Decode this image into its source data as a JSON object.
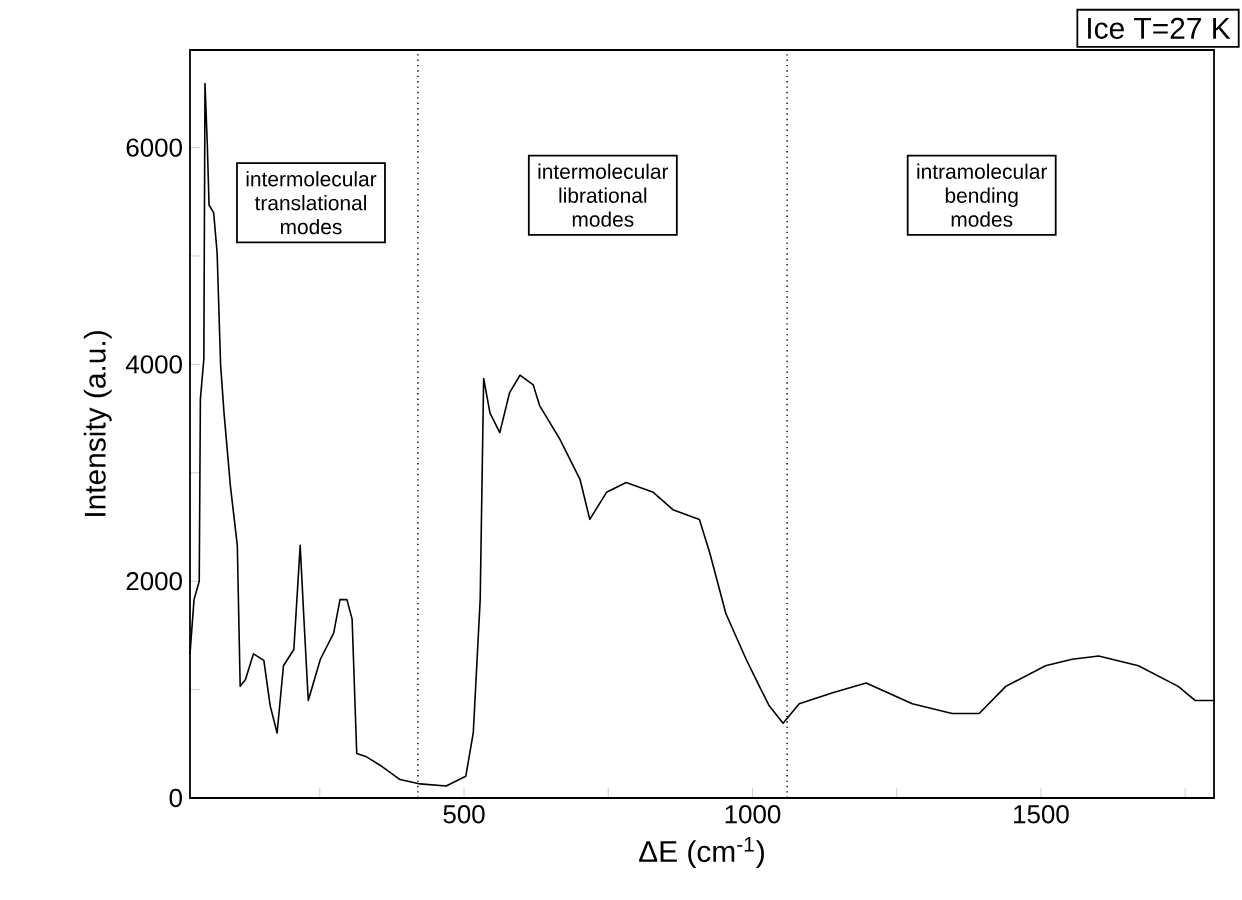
{
  "chart_data": {
    "type": "line",
    "xlabel": "ΔE (cm$^{-1}$)",
    "ylabel": "Intensity (a.u.)",
    "x": [
      25,
      32,
      41,
      43,
      49,
      51,
      55,
      58,
      66,
      72,
      78,
      84,
      95,
      107,
      112,
      121,
      135,
      153,
      164,
      176,
      187,
      205,
      216,
      222,
      230,
      251,
      274,
      285,
      297,
      306,
      314,
      331,
      355,
      389,
      424,
      469,
      503,
      516,
      528,
      534,
      545,
      562,
      579,
      597,
      620,
      631,
      666,
      701,
      718,
      747,
      781,
      828,
      862,
      908,
      926,
      954,
      989,
      1012,
      1029,
      1053,
      1081,
      1139,
      1197,
      1277,
      1346,
      1393,
      1439,
      1508,
      1554,
      1600,
      1669,
      1738,
      1767,
      1800
    ],
    "series": [
      {
        "color": "#000000",
        "values": [
          1330,
          1830,
          2000,
          3680,
          4050,
          6590,
          6030,
          5470,
          5400,
          5030,
          4000,
          3550,
          2880,
          2330,
          1030,
          1090,
          1330,
          1270,
          850,
          600,
          1220,
          1370,
          2330,
          1700,
          900,
          1280,
          1520,
          1830,
          1830,
          1650,
          410,
          380,
          300,
          170,
          130,
          110,
          200,
          600,
          1830,
          3870,
          3550,
          3370,
          3740,
          3900,
          3810,
          3620,
          3310,
          2940,
          2570,
          2820,
          2910,
          2820,
          2660,
          2570,
          2260,
          1700,
          1280,
          1030,
          850,
          690,
          870,
          970,
          1060,
          870,
          780,
          780,
          1030,
          1220,
          1280,
          1310,
          1220,
          1030,
          900,
          900
        ]
      }
    ],
    "xlim": [
      25,
      1800
    ],
    "ylim": [
      0,
      6900
    ],
    "xticks": [
      {
        "value": 250,
        "label": null
      },
      500,
      {
        "value": 750,
        "label": null
      },
      1000,
      {
        "value": 1250,
        "label": null
      },
      1500,
      {
        "value": 1750,
        "label": null
      }
    ],
    "yticks": [
      0,
      {
        "value": 1000,
        "label": null
      },
      2000,
      {
        "value": 3000,
        "label": null
      },
      4000,
      {
        "value": 5000,
        "label": null
      },
      6000
    ],
    "ref_lines": [
      {
        "axis": "x",
        "value": 420,
        "line_style": "dotted"
      },
      {
        "axis": "x",
        "value": 1060,
        "line_style": "dotted"
      }
    ],
    "annotations": [
      "Ice   T=27 K",
      "intermolecular translational modes",
      "intermolecular librational modes",
      "intramolecular bending modes"
    ],
    "grid": false,
    "marker": "none",
    "line_style": "solid"
  }
}
